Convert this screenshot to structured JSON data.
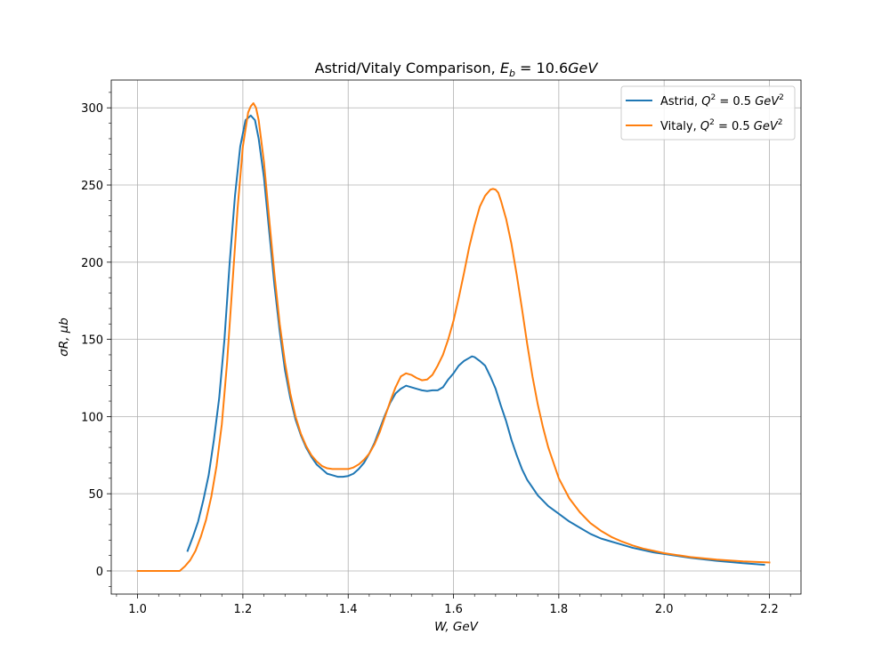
{
  "chart_data": {
    "type": "line",
    "title": {
      "prefix": "Astrid/Vitaly Comparison, ",
      "math_var": "E",
      "math_sub": "b",
      "math_eq": " = 10.6",
      "math_unit": "GeV"
    },
    "xlabel": "W, GeV",
    "ylabel": "σR, μb",
    "xlim": [
      0.95,
      2.26
    ],
    "ylim": [
      -15,
      318
    ],
    "xticks": [
      1.0,
      1.2,
      1.4,
      1.6,
      1.8,
      2.0,
      2.2
    ],
    "xtick_labels": [
      "1.0",
      "1.2",
      "1.4",
      "1.6",
      "1.8",
      "2.0",
      "2.2"
    ],
    "yticks": [
      0,
      50,
      100,
      150,
      200,
      250,
      300
    ],
    "ytick_labels": [
      "0",
      "50",
      "100",
      "150",
      "200",
      "250",
      "300"
    ],
    "grid": true,
    "legend_position": "top-right",
    "series": [
      {
        "name": "Astrid, Q2 = 0.5 GeV2",
        "legend_prefix": "Astrid, ",
        "color": "#1f77b4",
        "x": [
          1.095,
          1.105,
          1.115,
          1.125,
          1.135,
          1.145,
          1.155,
          1.165,
          1.175,
          1.185,
          1.195,
          1.205,
          1.215,
          1.223,
          1.23,
          1.24,
          1.25,
          1.26,
          1.27,
          1.28,
          1.29,
          1.3,
          1.31,
          1.32,
          1.33,
          1.34,
          1.35,
          1.36,
          1.37,
          1.38,
          1.39,
          1.4,
          1.41,
          1.42,
          1.43,
          1.44,
          1.45,
          1.46,
          1.47,
          1.48,
          1.49,
          1.5,
          1.51,
          1.52,
          1.525,
          1.53,
          1.54,
          1.55,
          1.56,
          1.57,
          1.575,
          1.58,
          1.59,
          1.6,
          1.61,
          1.62,
          1.63,
          1.635,
          1.64,
          1.65,
          1.66,
          1.67,
          1.68,
          1.69,
          1.7,
          1.71,
          1.72,
          1.73,
          1.74,
          1.75,
          1.76,
          1.78,
          1.8,
          1.82,
          1.84,
          1.86,
          1.88,
          1.9,
          1.92,
          1.94,
          1.96,
          1.98,
          2.0,
          2.05,
          2.1,
          2.15,
          2.19
        ],
        "y": [
          13,
          22,
          32,
          46,
          62,
          85,
          112,
          150,
          200,
          243,
          275,
          292,
          295,
          292,
          280,
          255,
          220,
          185,
          155,
          130,
          112,
          98,
          88,
          80,
          74,
          69,
          66,
          63,
          62,
          61,
          61,
          61.5,
          63,
          66,
          70,
          76,
          83,
          92,
          101,
          109,
          115,
          118,
          120,
          119,
          118.5,
          118,
          117,
          116.5,
          117,
          117,
          118,
          119,
          124,
          128,
          133,
          136,
          138,
          139,
          138.5,
          136,
          133,
          126,
          118,
          107,
          97,
          85,
          75,
          66,
          59,
          54,
          49,
          42,
          37,
          32,
          28,
          24,
          21,
          19,
          17,
          15,
          13.5,
          12,
          11,
          8.5,
          6.5,
          5,
          4
        ]
      },
      {
        "name": "Vitaly, Q2 = 0.5 GeV2",
        "legend_prefix": "Vitaly, ",
        "color": "#ff7f0e",
        "x": [
          1.0,
          1.02,
          1.04,
          1.06,
          1.08,
          1.09,
          1.1,
          1.11,
          1.12,
          1.13,
          1.14,
          1.15,
          1.16,
          1.17,
          1.18,
          1.19,
          1.2,
          1.21,
          1.215,
          1.22,
          1.225,
          1.23,
          1.24,
          1.25,
          1.26,
          1.27,
          1.28,
          1.29,
          1.3,
          1.31,
          1.32,
          1.33,
          1.34,
          1.35,
          1.36,
          1.37,
          1.38,
          1.39,
          1.4,
          1.41,
          1.42,
          1.43,
          1.44,
          1.45,
          1.46,
          1.47,
          1.48,
          1.49,
          1.5,
          1.51,
          1.52,
          1.53,
          1.54,
          1.55,
          1.56,
          1.57,
          1.58,
          1.59,
          1.6,
          1.61,
          1.62,
          1.63,
          1.64,
          1.65,
          1.66,
          1.67,
          1.675,
          1.68,
          1.685,
          1.69,
          1.7,
          1.71,
          1.72,
          1.73,
          1.74,
          1.75,
          1.76,
          1.77,
          1.78,
          1.79,
          1.8,
          1.82,
          1.84,
          1.86,
          1.88,
          1.9,
          1.92,
          1.94,
          1.96,
          1.98,
          2.0,
          2.05,
          2.1,
          2.15,
          2.2
        ],
        "y": [
          0,
          0,
          0,
          0,
          0,
          3,
          7,
          13,
          22,
          33,
          48,
          68,
          95,
          135,
          185,
          235,
          275,
          297,
          301,
          303,
          300,
          292,
          265,
          228,
          192,
          160,
          135,
          115,
          100,
          89,
          81,
          75,
          71,
          68,
          66.5,
          66,
          66,
          66,
          66,
          67,
          69,
          72,
          76,
          82,
          90,
          100,
          110,
          119,
          126,
          128,
          127,
          125,
          123.5,
          124,
          127,
          133,
          140,
          150,
          162,
          177,
          193,
          210,
          224,
          236,
          243,
          247,
          247.5,
          247,
          245,
          240,
          228,
          212,
          192,
          170,
          147,
          126,
          108,
          93,
          80,
          70,
          60,
          47,
          38,
          31,
          26,
          22,
          19,
          16.5,
          14.5,
          13,
          11.5,
          9,
          7.3,
          6.2,
          5.5
        ]
      }
    ]
  }
}
